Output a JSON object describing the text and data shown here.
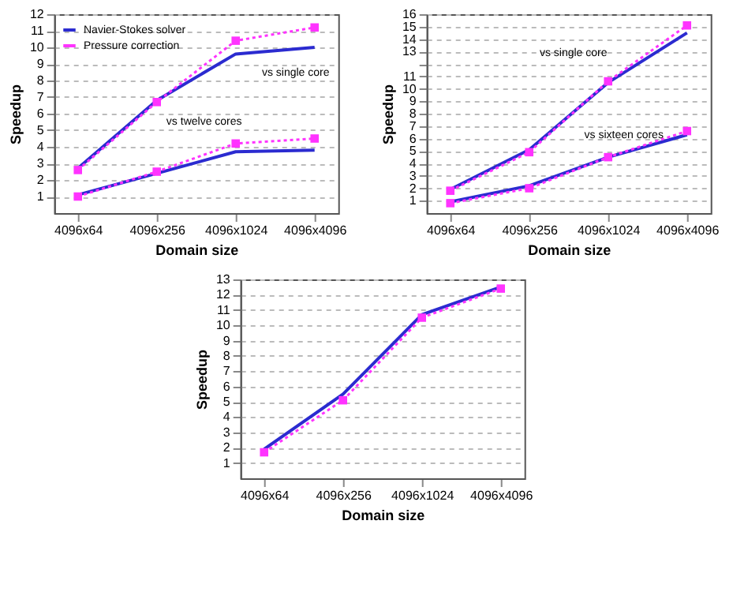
{
  "chart_data": [
    {
      "type": "line",
      "xlabel": "Domain size",
      "ylabel": "Speedup",
      "categories": [
        "4096x64",
        "4096x256",
        "4096x1024",
        "4096x4096"
      ],
      "ylim": [
        0,
        12
      ],
      "yticks": [
        1,
        2,
        3,
        4,
        5,
        6,
        7,
        8,
        9,
        10,
        11,
        12
      ],
      "grid": "y",
      "legend": "top left",
      "series": [
        {
          "name": "Navier-Stokes solver",
          "color": "#2b2bd0",
          "values": [
            2.7,
            6.8,
            9.6,
            10.0
          ],
          "line_style": "solid",
          "marker": "none"
        },
        {
          "name": "Pressure correction",
          "color": "#ff33ff",
          "values": [
            2.6,
            6.7,
            10.4,
            11.2
          ],
          "line_style": "dotted",
          "marker": "square"
        },
        {
          "color": "#2b2bd0",
          "values": [
            1.1,
            2.4,
            3.7,
            3.8
          ],
          "line_style": "solid",
          "marker": "none"
        },
        {
          "color": "#ff33ff",
          "values": [
            1.0,
            2.5,
            4.2,
            4.5
          ],
          "line_style": "dotted",
          "marker": "square"
        }
      ],
      "annotations": [
        {
          "text": "vs single core",
          "x": "4096x4096",
          "y": 10.0
        },
        {
          "text": "vs twelve cores",
          "x": "4096x1024",
          "y": 4.2
        }
      ]
    },
    {
      "type": "line",
      "xlabel": "Domain size",
      "ylabel": "Speedup",
      "categories": [
        "4096x64",
        "4096x256",
        "4096x1024",
        "4096x4096"
      ],
      "ylim": [
        0,
        16
      ],
      "yticks": [
        1,
        2,
        3,
        4,
        5,
        6,
        7,
        8,
        9,
        10,
        11,
        {
          "value": 12,
          "label": null
        },
        13,
        14,
        15,
        16
      ],
      "grid": "y",
      "legend": "top left",
      "series": [
        {
          "name": "Navier-Stokes solver",
          "color": "#2b2bd0",
          "values": [
            1.9,
            5.1,
            10.5,
            14.5
          ],
          "line_style": "solid",
          "marker": "none"
        },
        {
          "name": "Pressure correction",
          "color": "#ff33ff",
          "values": [
            1.8,
            4.9,
            10.6,
            15.1
          ],
          "line_style": "dotted",
          "marker": "square"
        },
        {
          "color": "#2b2bd0",
          "values": [
            0.9,
            2.2,
            4.5,
            6.3
          ],
          "line_style": "solid",
          "marker": "none"
        },
        {
          "color": "#ff33ff",
          "values": [
            0.8,
            2.0,
            4.5,
            6.6
          ],
          "line_style": "dotted",
          "marker": "square"
        }
      ],
      "annotations": [
        {
          "text": "vs single core",
          "x": "4096x1024",
          "y": 10.6
        },
        {
          "text": "vs sixteen cores",
          "x": "4096x1024",
          "y": 4.5
        }
      ]
    },
    {
      "type": "line",
      "xlabel": "Domain size",
      "ylabel": "Speedup",
      "categories": [
        "4096x64",
        "4096x256",
        "4096x1024",
        "4096x4096"
      ],
      "ylim": [
        0,
        13
      ],
      "yticks": [
        1,
        2,
        3,
        4,
        5,
        6,
        7,
        8,
        9,
        10,
        11,
        12,
        13
      ],
      "grid": "y",
      "legend": "top left",
      "series": [
        {
          "name": "Navier-Stokes solver",
          "color": "#2b2bd0",
          "values": [
            1.9,
            5.5,
            10.7,
            12.5
          ],
          "line_style": "solid",
          "marker": "none"
        },
        {
          "name": "Pressure correction",
          "color": "#ff33ff",
          "values": [
            1.7,
            5.1,
            10.5,
            12.4
          ],
          "line_style": "dotted",
          "marker": "square"
        }
      ]
    }
  ]
}
